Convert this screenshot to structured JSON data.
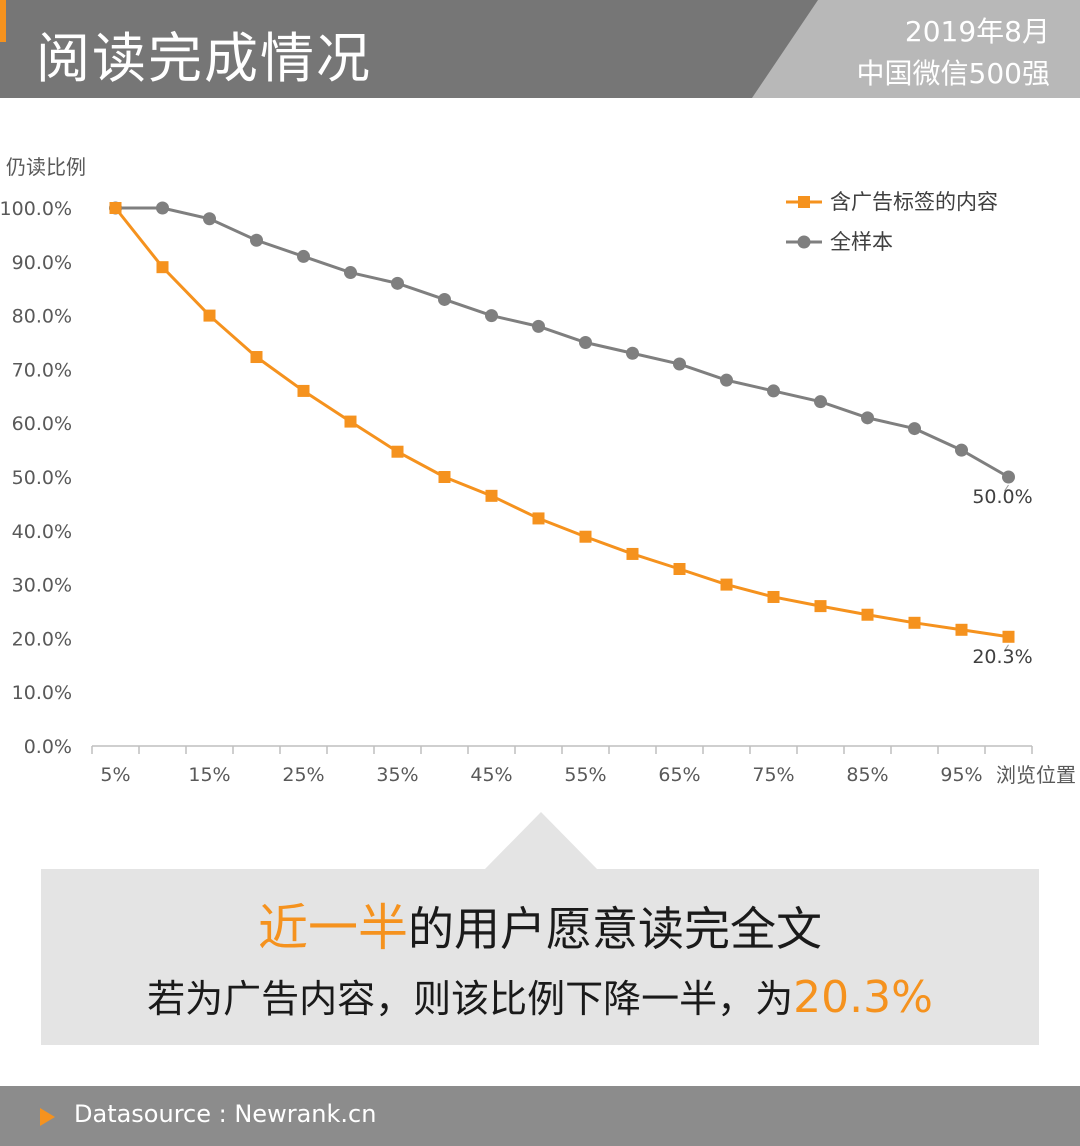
{
  "header": {
    "title": "阅读完成情况",
    "date": "2019年8月",
    "sample": "中国微信500强",
    "colors": {
      "dark_band": "#767676",
      "light_band": "#b8b8b8",
      "accent": "#f5921e"
    }
  },
  "chart_data": {
    "type": "line",
    "title": "",
    "ylabel": "仍读比例",
    "xlabel": "浏览位置",
    "ylim": [
      0,
      100
    ],
    "y_ticks": [
      "0.0%",
      "10.0%",
      "20.0%",
      "30.0%",
      "40.0%",
      "50.0%",
      "60.0%",
      "70.0%",
      "80.0%",
      "90.0%",
      "100.0%"
    ],
    "x_tick_labels": [
      "5%",
      "15%",
      "25%",
      "35%",
      "45%",
      "55%",
      "65%",
      "75%",
      "85%",
      "95%"
    ],
    "x": [
      5,
      10,
      15,
      20,
      25,
      30,
      35,
      40,
      45,
      50,
      55,
      60,
      65,
      70,
      75,
      80,
      85,
      90,
      95,
      100
    ],
    "series": [
      {
        "name": "含广告标签的内容",
        "color": "#f5921e",
        "marker": "square",
        "values": [
          100,
          89,
          80,
          72.3,
          66,
          60.3,
          54.7,
          50,
          46.5,
          42.3,
          38.9,
          35.7,
          32.9,
          30,
          27.7,
          26,
          24.4,
          22.9,
          21.6,
          20.3
        ],
        "end_label": "20.3%"
      },
      {
        "name": "全样本",
        "color": "#7f7f7f",
        "marker": "circle",
        "values": [
          100,
          100,
          98,
          94,
          91,
          88,
          86,
          83,
          80,
          78,
          75,
          73,
          71,
          68,
          66,
          64,
          61,
          59,
          55,
          50
        ],
        "end_label": "50.0%"
      }
    ],
    "grid": false,
    "legend": "top-right"
  },
  "callout": {
    "line1_highlight": "近一半",
    "line1_rest": "的用户愿意读完全文",
    "line2_prefix": "若为广告内容，则该比例下降一半，为",
    "line2_highlight": "20.3%"
  },
  "footer": {
    "source": "Datasource : Newrank.cn"
  }
}
